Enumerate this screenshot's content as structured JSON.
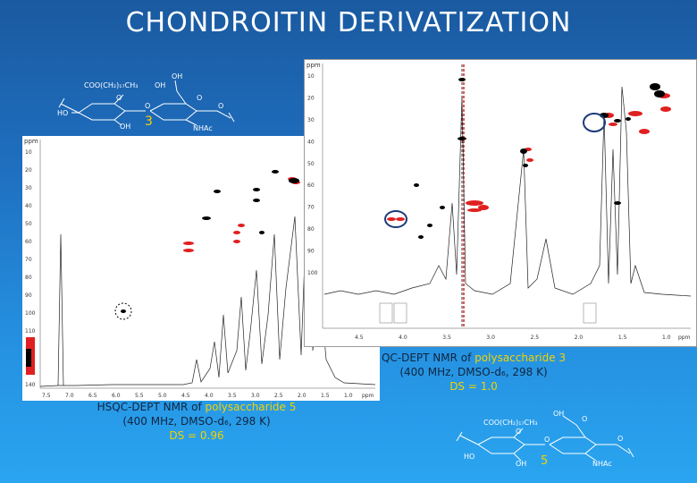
{
  "slide": {
    "title": "CHONDROITIN DERIVATIZATION"
  },
  "structures": {
    "top": {
      "substituent": "COO(CH₂)₁₇CH₃",
      "oh_a": "OH",
      "oh_b": "OH",
      "ho": "HO",
      "oh_c": "OH",
      "nhac": "NHAc",
      "o1": "O",
      "o2": "O",
      "o3": "O",
      "o4": "O",
      "compound_number": "3"
    },
    "bottom": {
      "substituent": "COO(CH₂)₁₇CH₃",
      "oh_a": "OH",
      "ho": "HO",
      "oh_c": "OH",
      "nhac": "NHAc",
      "o1": "O",
      "o2": "O",
      "o3": "O",
      "o4": "O",
      "compound_number": "5"
    }
  },
  "spectra": {
    "left": {
      "ppm_label": "ppm",
      "y_ticks": [
        "10",
        "20",
        "30",
        "40",
        "50",
        "60",
        "70",
        "80",
        "90",
        "100",
        "110",
        "120",
        "130",
        "140"
      ],
      "x_ticks": [
        "7.5",
        "7.0",
        "6.5",
        "6.0",
        "5.5",
        "5.0",
        "4.5",
        "4.0",
        "3.5",
        "3.0",
        "2.5",
        "2.0",
        "1.5",
        "1.0"
      ],
      "x_unit": "ppm"
    },
    "right": {
      "ppm_label": "ppm",
      "y_ticks": [
        "10",
        "20",
        "30",
        "40",
        "50",
        "60",
        "70",
        "80",
        "90",
        "100"
      ],
      "x_ticks": [
        "4.5",
        "4.0",
        "3.5",
        "3.0",
        "2.5",
        "2.0",
        "1.5",
        "1.0"
      ],
      "x_unit": "ppm"
    }
  },
  "captions": {
    "right": {
      "line1_prefix": "QC-DEPT NMR of ",
      "line1_highlight": "polysaccharide 3",
      "line2": "(400 MHz, DMSO-d₆, 298 K)",
      "line3": "DS = 1.0"
    },
    "left": {
      "line1_prefix": "HSQC-DEPT NMR of ",
      "line1_highlight": "polysaccharide 5",
      "line2": "(400 MHz, DMSO-d₆, 298 K)",
      "line3": "DS = 0.96"
    }
  },
  "colors": {
    "positive_peak": "#000000",
    "negative_peak": "#e02020",
    "highlight_circle": "#1b3a7a",
    "caption_yellow": "#f2d200"
  }
}
